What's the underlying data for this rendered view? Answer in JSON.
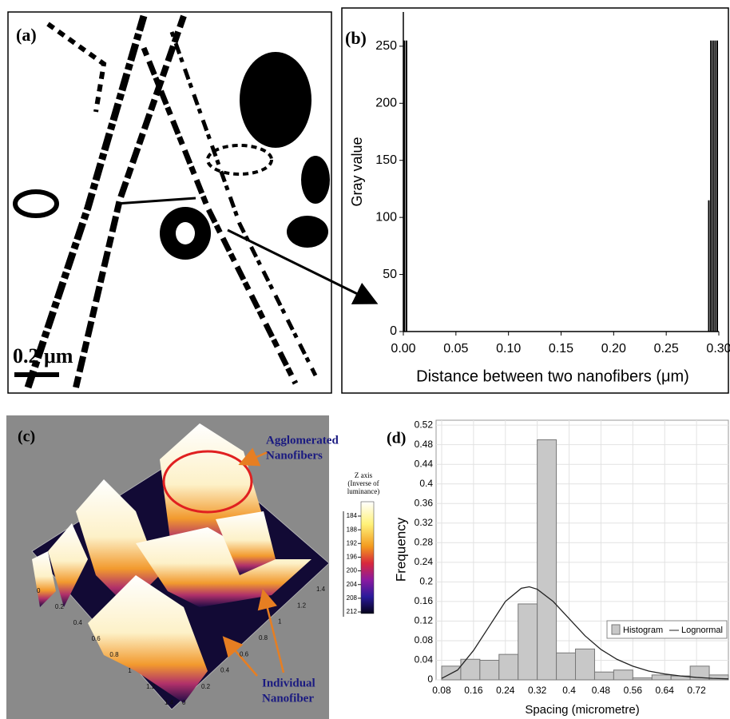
{
  "chart_data": [
    {
      "type": "image",
      "label": "(a)",
      "scale_bar": "0.2 μm"
    },
    {
      "type": "bar",
      "label": "(b)",
      "xlabel": "Distance between two nanofibers (μm)",
      "ylabel": "Gray value",
      "x": [
        0.001,
        0.003,
        0.2905,
        0.2925,
        0.2945,
        0.2965,
        0.2985
      ],
      "values": [
        255,
        255,
        115,
        255,
        255,
        255,
        255
      ],
      "color": "#000000",
      "xlim": [
        0,
        0.3
      ],
      "ylim": [
        0,
        280
      ],
      "xticks": [
        {
          "value": 0,
          "label": "0.00"
        },
        {
          "value": 0.05,
          "label": "0.05"
        },
        {
          "value": 0.1,
          "label": "0.10"
        },
        {
          "value": 0.15,
          "label": "0.15"
        },
        {
          "value": 0.2,
          "label": "0.20"
        },
        {
          "value": 0.25,
          "label": "0.25"
        },
        {
          "value": 0.3,
          "label": "0.30"
        }
      ],
      "yticks": [
        0,
        50,
        100,
        150,
        200,
        250
      ]
    },
    {
      "type": "surface3d",
      "label": "(c)",
      "annotations": [
        {
          "lines": [
            "Agglomerated",
            "Nanofibers"
          ]
        },
        {
          "lines": [
            "Individual",
            "Nanofiber"
          ]
        }
      ],
      "colorbar_title": [
        "Z axis",
        "(Inverse of",
        "luminance)"
      ],
      "colorbar_ticks": [
        184,
        188,
        192,
        196,
        200,
        204,
        208,
        212
      ],
      "axis_ticks": [
        0,
        0.2,
        0.4,
        0.6,
        0.8,
        1,
        1.2,
        1.4
      ]
    },
    {
      "type": "histogram",
      "label": "(d)",
      "xlabel": "Spacing (micrometre)",
      "ylabel": "Frequency",
      "histogram_name": "Histogram",
      "color": "#c8c8c8",
      "bins": [
        0.08,
        0.128,
        0.176,
        0.224,
        0.272,
        0.32,
        0.368,
        0.416,
        0.464,
        0.512,
        0.56,
        0.608,
        0.656,
        0.704,
        0.752,
        0.8
      ],
      "values": [
        0.028,
        0.042,
        0.04,
        0.052,
        0.155,
        0.49,
        0.055,
        0.063,
        0.016,
        0.02,
        0.004,
        0.01,
        0.008,
        0.028,
        0.01
      ],
      "curve": {
        "name": "Lognormal",
        "x": [
          0.08,
          0.12,
          0.16,
          0.2,
          0.24,
          0.28,
          0.3,
          0.32,
          0.36,
          0.4,
          0.44,
          0.48,
          0.52,
          0.56,
          0.6,
          0.64,
          0.68,
          0.72,
          0.76,
          0.8
        ],
        "y": [
          0.003,
          0.02,
          0.06,
          0.11,
          0.16,
          0.187,
          0.19,
          0.185,
          0.16,
          0.125,
          0.09,
          0.062,
          0.042,
          0.028,
          0.018,
          0.012,
          0.008,
          0.005,
          0.003,
          0.002
        ]
      },
      "xlim": [
        0.066,
        0.8
      ],
      "ylim": [
        0,
        0.53
      ],
      "xticks": [
        0.08,
        0.16,
        0.24,
        0.32,
        0.4,
        0.48,
        0.56,
        0.64,
        0.72
      ],
      "yticks": [
        0,
        0.04,
        0.08,
        0.12,
        0.16,
        0.2,
        0.24,
        0.28,
        0.32,
        0.36,
        0.4,
        0.44,
        0.48,
        0.52
      ],
      "grid": true
    }
  ]
}
